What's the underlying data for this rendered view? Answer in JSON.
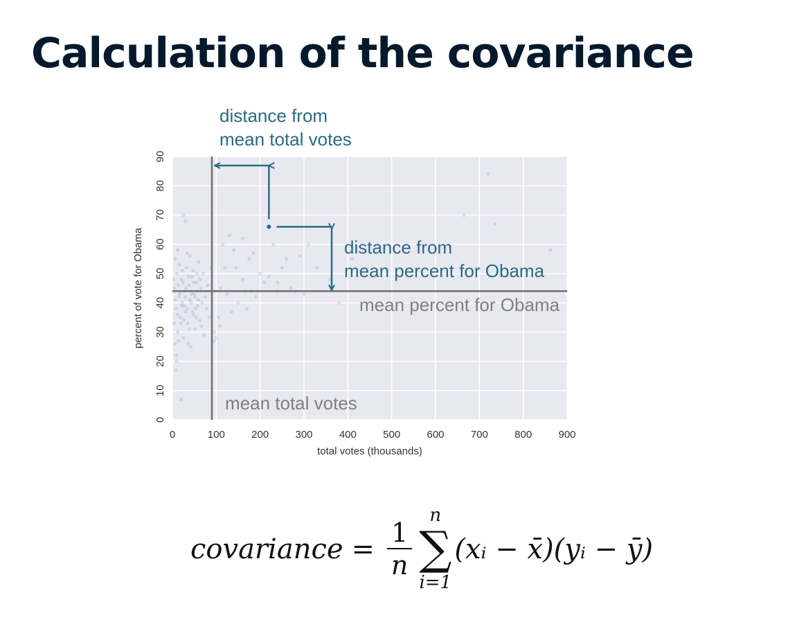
{
  "title": "Calculation of the covariance",
  "chart_data": {
    "type": "scatter",
    "xlabel": "total votes (thousands)",
    "ylabel": "percent of vote for Obama",
    "xlim": [
      0,
      900
    ],
    "ylim": [
      0,
      90
    ],
    "x_ticks": [
      0,
      100,
      200,
      300,
      400,
      500,
      600,
      700,
      800,
      900
    ],
    "y_ticks": [
      0,
      10,
      20,
      30,
      40,
      50,
      60,
      70,
      80,
      90
    ],
    "grid": true,
    "mean_x": 90,
    "mean_y": 44,
    "highlighted_point": {
      "x": 220,
      "y": 66
    },
    "points": [
      [
        5,
        45
      ],
      [
        8,
        38
      ],
      [
        10,
        50
      ],
      [
        12,
        30
      ],
      [
        15,
        42
      ],
      [
        18,
        35
      ],
      [
        20,
        48
      ],
      [
        22,
        40
      ],
      [
        25,
        28
      ],
      [
        28,
        44
      ],
      [
        30,
        37
      ],
      [
        32,
        52
      ],
      [
        35,
        33
      ],
      [
        38,
        46
      ],
      [
        40,
        41
      ],
      [
        42,
        25
      ],
      [
        45,
        49
      ],
      [
        48,
        36
      ],
      [
        50,
        43
      ],
      [
        52,
        31
      ],
      [
        55,
        47
      ],
      [
        58,
        39
      ],
      [
        60,
        54
      ],
      [
        62,
        34
      ],
      [
        65,
        45
      ],
      [
        68,
        40
      ],
      [
        70,
        50
      ],
      [
        72,
        29
      ],
      [
        75,
        42
      ],
      [
        78,
        38
      ],
      [
        80,
        46
      ],
      [
        85,
        35
      ],
      [
        88,
        52
      ],
      [
        95,
        30
      ],
      [
        98,
        44
      ],
      [
        6,
        55
      ],
      [
        9,
        22
      ],
      [
        14,
        27
      ],
      [
        16,
        53
      ],
      [
        19,
        33
      ],
      [
        24,
        47
      ],
      [
        27,
        39
      ],
      [
        33,
        57
      ],
      [
        36,
        26
      ],
      [
        44,
        43
      ],
      [
        47,
        51
      ],
      [
        53,
        38
      ],
      [
        57,
        44
      ],
      [
        63,
        48
      ],
      [
        66,
        32
      ],
      [
        7,
        41
      ],
      [
        11,
        36
      ],
      [
        13,
        46
      ],
      [
        17,
        43
      ],
      [
        21,
        39
      ],
      [
        23,
        51
      ],
      [
        26,
        34
      ],
      [
        29,
        42
      ],
      [
        31,
        45
      ],
      [
        34,
        38
      ],
      [
        37,
        49
      ],
      [
        39,
        31
      ],
      [
        41,
        44
      ],
      [
        43,
        40
      ],
      [
        46,
        37
      ],
      [
        49,
        47
      ],
      [
        51,
        42
      ],
      [
        54,
        35
      ],
      [
        56,
        50
      ],
      [
        59,
        41
      ],
      [
        3,
        48
      ],
      [
        4,
        33
      ],
      [
        6,
        26
      ],
      [
        8,
        17
      ],
      [
        10,
        20
      ],
      [
        12,
        58
      ],
      [
        20,
        7
      ],
      [
        25,
        70
      ],
      [
        30,
        68
      ],
      [
        40,
        56
      ],
      [
        100,
        28
      ],
      [
        105,
        35
      ],
      [
        110,
        45
      ],
      [
        115,
        60
      ],
      [
        120,
        52
      ],
      [
        130,
        63
      ],
      [
        140,
        58
      ],
      [
        150,
        40
      ],
      [
        160,
        48
      ],
      [
        170,
        38
      ],
      [
        175,
        55
      ],
      [
        180,
        44
      ],
      [
        190,
        42
      ],
      [
        200,
        50
      ],
      [
        210,
        47
      ],
      [
        230,
        60
      ],
      [
        250,
        52
      ],
      [
        270,
        45
      ],
      [
        290,
        56
      ],
      [
        310,
        60
      ],
      [
        330,
        52
      ],
      [
        360,
        48
      ],
      [
        280,
        44
      ],
      [
        240,
        47
      ],
      [
        160,
        62
      ],
      [
        125,
        43
      ],
      [
        108,
        32
      ],
      [
        95,
        27
      ],
      [
        145,
        52
      ],
      [
        185,
        57
      ],
      [
        300,
        43
      ],
      [
        220,
        49
      ],
      [
        135,
        37
      ],
      [
        165,
        44
      ],
      [
        260,
        55
      ],
      [
        240,
        44
      ],
      [
        380,
        40
      ],
      [
        410,
        55
      ],
      [
        665,
        70
      ],
      [
        720,
        84
      ],
      [
        735,
        67
      ],
      [
        862,
        58
      ]
    ],
    "annotations": {
      "dx_label": [
        "distance from",
        "mean total votes"
      ],
      "dy_label": [
        "distance from",
        "mean percent for Obama"
      ],
      "mean_y_label": "mean percent for Obama",
      "mean_x_label": "mean total votes"
    }
  },
  "formula": {
    "lhs": "covariance",
    "eq": "=",
    "numerator": "1",
    "denominator": "n",
    "sigma": "∑",
    "upper": "n",
    "lower": "i=1",
    "terms": "(xᵢ − x̄)(yᵢ − ȳ)"
  },
  "colors": {
    "title": "#05192d",
    "plot_bg": "#e8e8f1",
    "grid": "#ffffff",
    "points": "#4c72b0",
    "mean_lines": "#6e6e6e",
    "annotation": "#2b6a86",
    "mean_label": "#808080"
  }
}
